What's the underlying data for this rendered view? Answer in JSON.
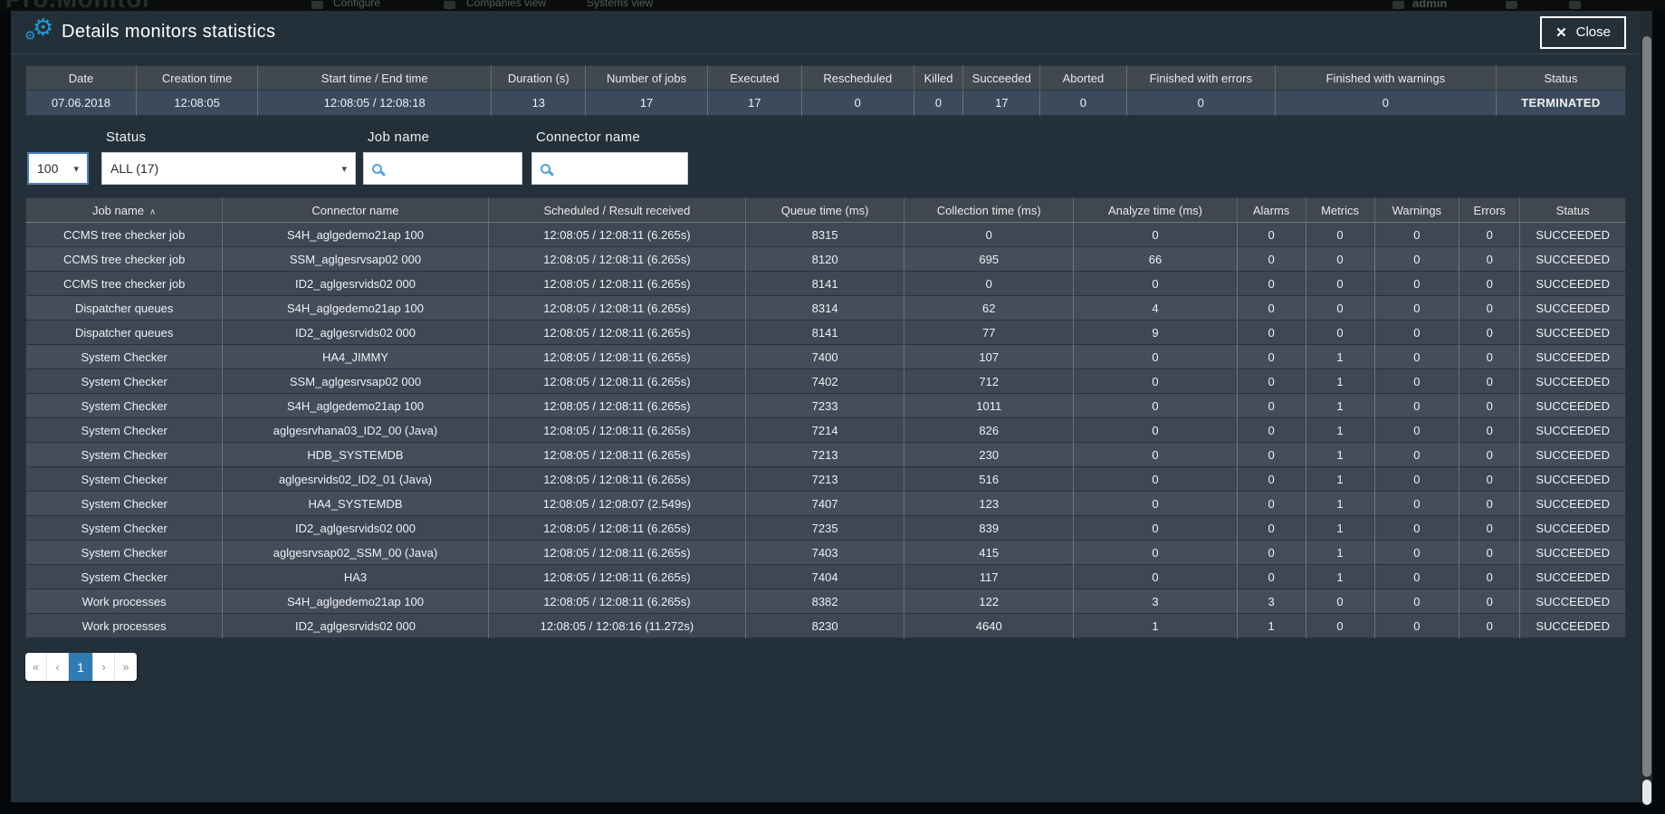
{
  "background_nav": {
    "logo": "Pro.Monitor",
    "items": [
      "Configure",
      "Companies view",
      "Systems view"
    ],
    "user": "admin"
  },
  "modal": {
    "title": "Details monitors statistics",
    "close_label": "Close"
  },
  "icons": {
    "gears": "⚙",
    "close": "✕",
    "caret_down": "▾",
    "sort_asc": "∧"
  },
  "summary_table": {
    "columns": [
      "Date",
      "Creation time",
      "Start time / End time",
      "Duration (s)",
      "Number of jobs",
      "Executed",
      "Rescheduled",
      "Killed",
      "Succeeded",
      "Aborted",
      "Finished with errors",
      "Finished with warnings",
      "Status"
    ],
    "row": [
      "07.06.2018",
      "12:08:05",
      "12:08:05 / 12:08:18",
      "13",
      "17",
      "17",
      "0",
      "0",
      "17",
      "0",
      "0",
      "0",
      "TERMINATED"
    ]
  },
  "filters": {
    "page_size": "100",
    "status_label": "Status",
    "status_value": "ALL (17)",
    "job_name_label": "Job name",
    "job_name_value": "",
    "connector_name_label": "Connector name",
    "connector_name_value": ""
  },
  "jobs_table": {
    "columns": [
      "Job name",
      "Connector name",
      "Scheduled / Result received",
      "Queue time (ms)",
      "Collection time (ms)",
      "Analyze time (ms)",
      "Alarms",
      "Metrics",
      "Warnings",
      "Errors",
      "Status"
    ],
    "sorted_by": "Job name",
    "sort_direction": "ascending",
    "rows": [
      [
        "CCMS tree checker job",
        "S4H_aglgedemo21ap 100",
        "12:08:05 / 12:08:11 (6.265s)",
        "8315",
        "0",
        "0",
        "0",
        "0",
        "0",
        "0",
        "SUCCEEDED"
      ],
      [
        "CCMS tree checker job",
        "SSM_aglgesrvsap02 000",
        "12:08:05 / 12:08:11 (6.265s)",
        "8120",
        "695",
        "66",
        "0",
        "0",
        "0",
        "0",
        "SUCCEEDED"
      ],
      [
        "CCMS tree checker job",
        "ID2_aglgesrvids02 000",
        "12:08:05 / 12:08:11 (6.265s)",
        "8141",
        "0",
        "0",
        "0",
        "0",
        "0",
        "0",
        "SUCCEEDED"
      ],
      [
        "Dispatcher queues",
        "S4H_aglgedemo21ap 100",
        "12:08:05 / 12:08:11 (6.265s)",
        "8314",
        "62",
        "4",
        "0",
        "0",
        "0",
        "0",
        "SUCCEEDED"
      ],
      [
        "Dispatcher queues",
        "ID2_aglgesrvids02 000",
        "12:08:05 / 12:08:11 (6.265s)",
        "8141",
        "77",
        "9",
        "0",
        "0",
        "0",
        "0",
        "SUCCEEDED"
      ],
      [
        "System Checker",
        "HA4_JIMMY",
        "12:08:05 / 12:08:11 (6.265s)",
        "7400",
        "107",
        "0",
        "0",
        "1",
        "0",
        "0",
        "SUCCEEDED"
      ],
      [
        "System Checker",
        "SSM_aglgesrvsap02 000",
        "12:08:05 / 12:08:11 (6.265s)",
        "7402",
        "712",
        "0",
        "0",
        "1",
        "0",
        "0",
        "SUCCEEDED"
      ],
      [
        "System Checker",
        "S4H_aglgedemo21ap 100",
        "12:08:05 / 12:08:11 (6.265s)",
        "7233",
        "1011",
        "0",
        "0",
        "1",
        "0",
        "0",
        "SUCCEEDED"
      ],
      [
        "System Checker",
        "aglgesrvhana03_ID2_00 (Java)",
        "12:08:05 / 12:08:11 (6.265s)",
        "7214",
        "826",
        "0",
        "0",
        "1",
        "0",
        "0",
        "SUCCEEDED"
      ],
      [
        "System Checker",
        "HDB_SYSTEMDB",
        "12:08:05 / 12:08:11 (6.265s)",
        "7213",
        "230",
        "0",
        "0",
        "1",
        "0",
        "0",
        "SUCCEEDED"
      ],
      [
        "System Checker",
        "aglgesrvids02_ID2_01 (Java)",
        "12:08:05 / 12:08:11 (6.265s)",
        "7213",
        "516",
        "0",
        "0",
        "1",
        "0",
        "0",
        "SUCCEEDED"
      ],
      [
        "System Checker",
        "HA4_SYSTEMDB",
        "12:08:05 / 12:08:07 (2.549s)",
        "7407",
        "123",
        "0",
        "0",
        "1",
        "0",
        "0",
        "SUCCEEDED"
      ],
      [
        "System Checker",
        "ID2_aglgesrvids02 000",
        "12:08:05 / 12:08:11 (6.265s)",
        "7235",
        "839",
        "0",
        "0",
        "1",
        "0",
        "0",
        "SUCCEEDED"
      ],
      [
        "System Checker",
        "aglgesrvsap02_SSM_00 (Java)",
        "12:08:05 / 12:08:11 (6.265s)",
        "7403",
        "415",
        "0",
        "0",
        "1",
        "0",
        "0",
        "SUCCEEDED"
      ],
      [
        "System Checker",
        "HA3",
        "12:08:05 / 12:08:11 (6.265s)",
        "7404",
        "117",
        "0",
        "0",
        "1",
        "0",
        "0",
        "SUCCEEDED"
      ],
      [
        "Work processes",
        "S4H_aglgedemo21ap 100",
        "12:08:05 / 12:08:11 (6.265s)",
        "8382",
        "122",
        "3",
        "3",
        "0",
        "0",
        "0",
        "SUCCEEDED"
      ],
      [
        "Work processes",
        "ID2_aglgesrvids02 000",
        "12:08:05 / 12:08:16 (11.272s)",
        "8230",
        "4640",
        "1",
        "1",
        "0",
        "0",
        "0",
        "SUCCEEDED"
      ]
    ]
  },
  "pagination": {
    "first": "«",
    "prev": "‹",
    "page": "1",
    "active_page": "1",
    "next": "›",
    "last": "»"
  },
  "colors": {
    "accent": "#2d9fd8",
    "active_page_bg": "#2f7cb5",
    "modal_bg": "#243039",
    "table_header_bg": "#40474f",
    "row_odd": "#3e4754",
    "row_even": "#454d5b",
    "summary_row_bg": "#3d4a5b"
  }
}
